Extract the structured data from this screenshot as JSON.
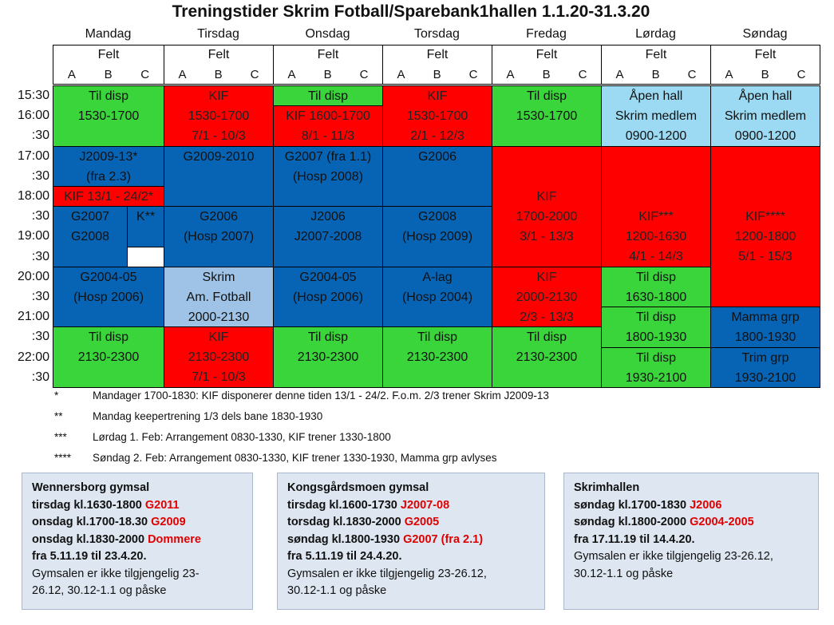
{
  "title": "Treningstider Skrim Fotball/Sparebank1hallen 1.1.20-31.3.20",
  "days": [
    "Mandag",
    "Tirsdag",
    "Onsdag",
    "Torsdag",
    "Fredag",
    "Lørdag",
    "Søndag"
  ],
  "felt_label": "Felt",
  "fields": [
    "A",
    "B",
    "C"
  ],
  "times": [
    "15:30",
    "16:00",
    ":30",
    "17:00",
    ":30",
    "18:00",
    ":30",
    "19:00",
    ":30",
    "20:00",
    ":30",
    "21:00",
    ":30",
    "22:00",
    ":30"
  ],
  "cells": {
    "mon_til_1": [
      "Til disp",
      "1530-1700"
    ],
    "mon_j2009": [
      "J2009-13*",
      "(fra 2.3)"
    ],
    "mon_kif": [
      "KIF 13/1 - 24/2*"
    ],
    "mon_g2007": [
      "G2007",
      "G2008"
    ],
    "mon_k": [
      "K**"
    ],
    "mon_g2004": [
      "G2004-05",
      "(Hosp 2006)"
    ],
    "mon_til_2": [
      "Til disp",
      "2130-2300"
    ],
    "tue_kif_1": [
      "KIF",
      "1530-1700",
      "7/1 - 10/3"
    ],
    "tue_g2009": [
      "G2009-2010"
    ],
    "tue_g2006": [
      "G2006",
      "(Hosp 2007)"
    ],
    "tue_skrim": [
      "Skrim",
      "Am. Fotball",
      "2000-2130"
    ],
    "tue_kif_2": [
      "KIF",
      "2130-2300",
      "7/1 - 10/3"
    ],
    "wed_til_1": [
      "Til disp"
    ],
    "wed_kif": [
      "KIF 1600-1700",
      "8/1 - 11/3"
    ],
    "wed_g2007": [
      "G2007 (fra 1.1)",
      "(Hosp 2008)"
    ],
    "wed_j2006": [
      "J2006",
      "J2007-2008"
    ],
    "wed_g2004": [
      "G2004-05",
      "(Hosp 2006)"
    ],
    "wed_til_2": [
      "Til disp",
      "2130-2300"
    ],
    "thu_kif": [
      "KIF",
      "1530-1700",
      "2/1 - 12/3"
    ],
    "thu_g2006": [
      "G2006"
    ],
    "thu_g2008": [
      "G2008",
      "(Hosp 2009)"
    ],
    "thu_alag": [
      "A-lag",
      "(Hosp 2004)"
    ],
    "thu_til_2": [
      "Til disp",
      "2130-2300"
    ],
    "fri_til_1": [
      "Til disp",
      "1530-1700"
    ],
    "fri_kif_1": [
      "KIF",
      "1700-2000",
      "3/1 - 13/3"
    ],
    "fri_kif_2": [
      "KIF",
      "2000-2130",
      "2/3 - 13/3"
    ],
    "fri_til_2": [
      "Til disp",
      "2130-2300"
    ],
    "sat_apen": [
      "Åpen hall",
      "Skrim medlem",
      "0900-1200"
    ],
    "sat_kif": [
      "KIF***",
      "1200-1630",
      "4/1 - 14/3"
    ],
    "sat_til_a": [
      "Til disp",
      "1630-1800"
    ],
    "sat_til_b": [
      "Til disp",
      "1800-1930"
    ],
    "sat_til_c": [
      "Til disp",
      "1930-2100"
    ],
    "sun_apen": [
      "Åpen hall",
      "Skrim medlem",
      "0900-1200"
    ],
    "sun_kif": [
      "KIF****",
      "1200-1800",
      "5/1 - 15/3"
    ],
    "sun_mamma": [
      "Mamma grp",
      "1800-1930"
    ],
    "sun_trim": [
      "Trim grp",
      "1930-2100"
    ]
  },
  "notes": [
    {
      "sym": "*",
      "text": "Mandager 1700-1830: KIF disponerer denne tiden 13/1 - 24/2. F.o.m. 2/3 trener Skrim J2009-13"
    },
    {
      "sym": "**",
      "text": "Mandag keepertrening 1/3 dels bane 1830-1930"
    },
    {
      "sym": "***",
      "text": "Lørdag 1. Feb: Arrangement 0830-1330, KIF trener 1330-1800"
    },
    {
      "sym": "****",
      "text": "Søndag 2. Feb: Arrangement 0830-1330, KIF trener 1330-1930, Mamma grp avlyses"
    }
  ],
  "boxes": [
    {
      "title": "Wennersborg gymsal",
      "lines": [
        {
          "text": "tirsdag kl.1630-1800 ",
          "red": "G2011"
        },
        {
          "text": "onsdag kl.1700-18.30 ",
          "red": "G2009"
        },
        {
          "text": "onsdag kl.1830-2000 ",
          "red": "Dommere"
        },
        {
          "text": "fra 5.11.19 til 23.4.20.",
          "red": ""
        }
      ],
      "plain": [
        "Gymsalen er ikke tilgjengelig 23-",
        "26.12,  30.12-1.1 og påske"
      ]
    },
    {
      "title": "Kongsgårdsmoen gymsal",
      "lines": [
        {
          "text": "tirsdag kl.1600-1730 ",
          "red": "J2007-08"
        },
        {
          "text": "torsdag kl.1830-2000 ",
          "red": "G2005"
        },
        {
          "text": "søndag kl.1800-1930 ",
          "red": "G2007 (fra 2.1)"
        },
        {
          "text": "fra 5.11.19 til 24.4.20.",
          "red": ""
        }
      ],
      "plain": [
        "Gymsalen er ikke tilgjengelig 23-26.12,",
        "30.12-1.1 og påske"
      ]
    },
    {
      "title": "Skrimhallen",
      "lines": [
        {
          "text": "søndag kl.1700-1830 ",
          "red": "J2006"
        },
        {
          "text": "søndag kl.1800-2000 ",
          "red": "G2004-2005"
        },
        {
          "text": "fra 17.11.19 til 14.4.20.",
          "red": ""
        }
      ],
      "plain": [
        "Gymsalen er ikke tilgjengelig 23-26.12,",
        "30.12-1.1 og påske"
      ]
    }
  ]
}
